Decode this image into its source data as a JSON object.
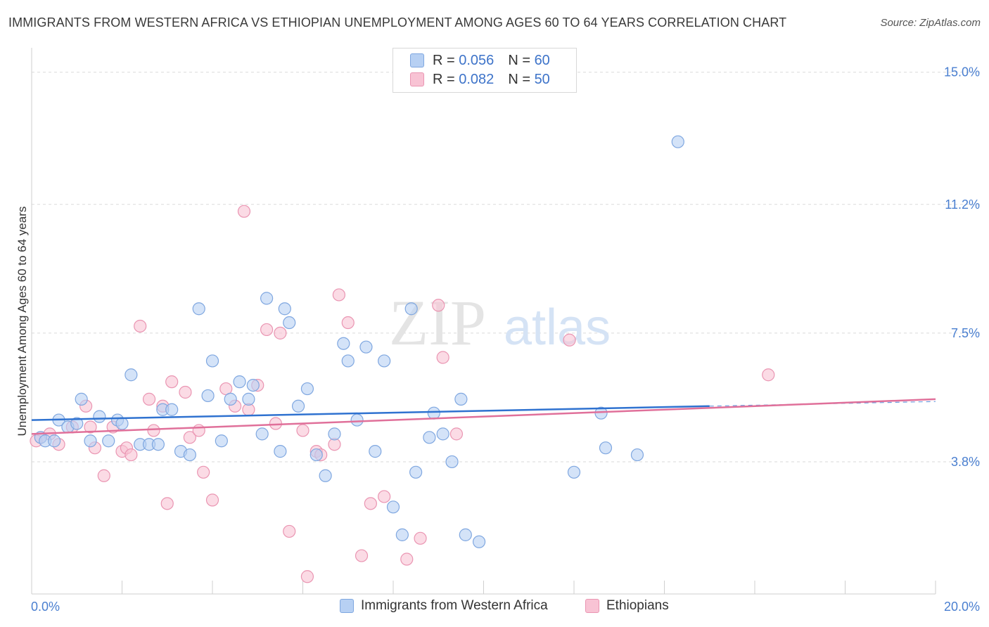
{
  "header": {
    "title": "IMMIGRANTS FROM WESTERN AFRICA VS ETHIOPIAN UNEMPLOYMENT AMONG AGES 60 TO 64 YEARS CORRELATION CHART",
    "source": "Source: ZipAtlas.com"
  },
  "watermark": {
    "zip": "ZIP",
    "atlas": "atlas"
  },
  "legend_top": {
    "r_label": "R =",
    "n_label": "N =",
    "series1": {
      "r": "0.056",
      "n": "60"
    },
    "series2": {
      "r": "0.082",
      "n": "50"
    }
  },
  "colors": {
    "blue_fill": "#b7d0f3",
    "blue_stroke": "#7fa7e0",
    "blue_line": "#2f72d0",
    "pink_fill": "#f8c3d4",
    "pink_stroke": "#ea95b2",
    "pink_line": "#e0709a",
    "tick_label": "#4a7fd0",
    "grid": "#dadada"
  },
  "chart_data": {
    "type": "scatter",
    "title": "IMMIGRANTS FROM WESTERN AFRICA VS ETHIOPIAN UNEMPLOYMENT AMONG AGES 60 TO 64 YEARS CORRELATION CHART",
    "xlabel": "",
    "ylabel": "Unemployment Among Ages 60 to 64 years",
    "xlim": [
      0,
      20
    ],
    "ylim": [
      0,
      15.5
    ],
    "x_tick_labels": [
      "0.0%",
      "20.0%"
    ],
    "y_ticks": [
      3.8,
      7.5,
      11.2,
      15.0
    ],
    "y_tick_labels": [
      "3.8%",
      "7.5%",
      "11.2%",
      "15.0%"
    ],
    "grid": true,
    "legend_position": "bottom",
    "series": [
      {
        "name": "Immigrants from Western Africa",
        "color": "#b7d0f3",
        "trend": {
          "x": [
            0,
            15.0
          ],
          "y": [
            5.0,
            5.4
          ]
        },
        "points": [
          [
            0.2,
            4.5
          ],
          [
            0.3,
            4.4
          ],
          [
            0.5,
            4.4
          ],
          [
            0.6,
            5.0
          ],
          [
            0.8,
            4.8
          ],
          [
            1.0,
            4.9
          ],
          [
            1.1,
            5.6
          ],
          [
            1.3,
            4.4
          ],
          [
            1.5,
            5.1
          ],
          [
            1.7,
            4.4
          ],
          [
            1.9,
            5.0
          ],
          [
            2.0,
            4.9
          ],
          [
            2.2,
            6.3
          ],
          [
            2.4,
            4.3
          ],
          [
            2.6,
            4.3
          ],
          [
            2.8,
            4.3
          ],
          [
            2.9,
            5.3
          ],
          [
            3.1,
            5.3
          ],
          [
            3.3,
            4.1
          ],
          [
            3.5,
            4.0
          ],
          [
            3.7,
            8.2
          ],
          [
            3.9,
            5.7
          ],
          [
            4.0,
            6.7
          ],
          [
            4.2,
            4.4
          ],
          [
            4.4,
            5.6
          ],
          [
            4.6,
            6.1
          ],
          [
            4.8,
            5.6
          ],
          [
            4.9,
            6.0
          ],
          [
            5.1,
            4.6
          ],
          [
            5.2,
            8.5
          ],
          [
            5.5,
            4.1
          ],
          [
            5.6,
            8.2
          ],
          [
            5.7,
            7.8
          ],
          [
            5.9,
            5.4
          ],
          [
            6.1,
            5.9
          ],
          [
            6.3,
            4.0
          ],
          [
            6.5,
            3.4
          ],
          [
            6.7,
            4.6
          ],
          [
            6.9,
            7.2
          ],
          [
            7.0,
            6.7
          ],
          [
            7.2,
            5.0
          ],
          [
            7.4,
            7.1
          ],
          [
            7.6,
            4.1
          ],
          [
            7.8,
            6.7
          ],
          [
            8.0,
            2.5
          ],
          [
            8.2,
            1.7
          ],
          [
            8.4,
            8.2
          ],
          [
            8.5,
            3.5
          ],
          [
            8.8,
            4.5
          ],
          [
            8.9,
            5.2
          ],
          [
            9.1,
            4.6
          ],
          [
            9.3,
            3.8
          ],
          [
            9.5,
            5.6
          ],
          [
            9.6,
            1.7
          ],
          [
            9.9,
            1.5
          ],
          [
            12.0,
            3.5
          ],
          [
            12.6,
            5.2
          ],
          [
            12.7,
            4.2
          ],
          [
            13.4,
            4.0
          ],
          [
            14.3,
            13.0
          ]
        ]
      },
      {
        "name": "Ethiopians",
        "color": "#f8c3d4",
        "trend": {
          "x": [
            0,
            20.0
          ],
          "y": [
            4.6,
            5.6
          ]
        },
        "points": [
          [
            0.2,
            4.5
          ],
          [
            0.4,
            4.6
          ],
          [
            0.6,
            4.3
          ],
          [
            1.2,
            5.4
          ],
          [
            1.3,
            4.8
          ],
          [
            1.4,
            4.2
          ],
          [
            1.6,
            3.4
          ],
          [
            1.8,
            4.8
          ],
          [
            2.0,
            4.1
          ],
          [
            2.1,
            4.2
          ],
          [
            2.2,
            4.0
          ],
          [
            2.4,
            7.7
          ],
          [
            2.6,
            5.6
          ],
          [
            2.7,
            4.7
          ],
          [
            2.9,
            5.4
          ],
          [
            3.0,
            2.6
          ],
          [
            3.1,
            6.1
          ],
          [
            3.4,
            5.8
          ],
          [
            3.5,
            4.5
          ],
          [
            3.7,
            4.7
          ],
          [
            3.8,
            3.5
          ],
          [
            4.0,
            2.7
          ],
          [
            4.3,
            5.9
          ],
          [
            4.5,
            5.4
          ],
          [
            4.7,
            11.0
          ],
          [
            4.8,
            5.3
          ],
          [
            5.0,
            6.0
          ],
          [
            5.2,
            7.6
          ],
          [
            5.4,
            4.9
          ],
          [
            5.5,
            7.5
          ],
          [
            5.7,
            1.8
          ],
          [
            6.0,
            4.7
          ],
          [
            6.1,
            0.5
          ],
          [
            6.3,
            4.1
          ],
          [
            6.7,
            4.3
          ],
          [
            6.8,
            8.6
          ],
          [
            7.0,
            7.8
          ],
          [
            7.3,
            1.1
          ],
          [
            7.5,
            2.6
          ],
          [
            7.8,
            2.8
          ],
          [
            8.3,
            1.0
          ],
          [
            8.6,
            1.6
          ],
          [
            9.0,
            8.3
          ],
          [
            9.1,
            6.8
          ],
          [
            9.4,
            4.6
          ],
          [
            11.9,
            7.3
          ],
          [
            16.3,
            6.3
          ],
          [
            0.1,
            4.4
          ],
          [
            0.9,
            4.8
          ],
          [
            6.4,
            4.0
          ]
        ]
      }
    ]
  },
  "bottom_legend": {
    "item1": "Immigrants from Western Africa",
    "item2": "Ethiopians"
  }
}
